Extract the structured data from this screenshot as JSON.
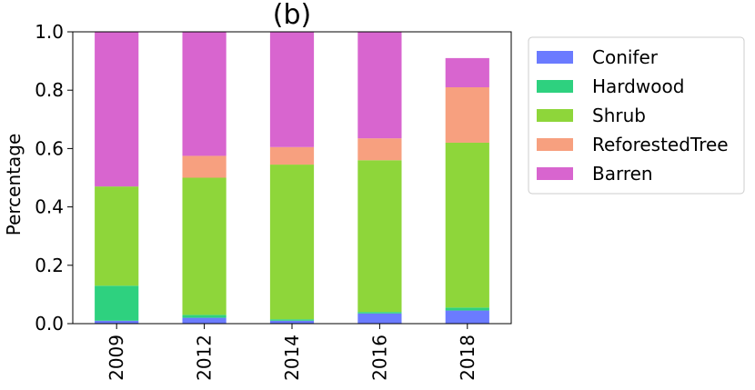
{
  "chart_data": {
    "type": "bar",
    "stacked": true,
    "title": "(b)",
    "xlabel": "",
    "ylabel": "Percentage",
    "ylim": [
      0,
      1.0
    ],
    "yticks": [
      "0.0",
      "0.2",
      "0.4",
      "0.6",
      "0.8",
      "1.0"
    ],
    "categories": [
      "2009",
      "2012",
      "2014",
      "2016",
      "2018"
    ],
    "grid": false,
    "legend_position": "right",
    "series": [
      {
        "name": "Conifer",
        "color": "#6b7bff",
        "values": [
          0.01,
          0.02,
          0.01,
          0.035,
          0.045
        ]
      },
      {
        "name": "Hardwood",
        "color": "#2ed17f",
        "values": [
          0.12,
          0.01,
          0.005,
          0.005,
          0.01
        ]
      },
      {
        "name": "Shrub",
        "color": "#8ed63a",
        "values": [
          0.34,
          0.47,
          0.53,
          0.52,
          0.565
        ]
      },
      {
        "name": "ReforestedTree",
        "color": "#f7a07f",
        "values": [
          0.0,
          0.075,
          0.06,
          0.075,
          0.19
        ]
      },
      {
        "name": "Barren",
        "color": "#d865cf",
        "values": [
          0.53,
          0.425,
          0.395,
          0.365,
          0.1
        ]
      }
    ]
  }
}
